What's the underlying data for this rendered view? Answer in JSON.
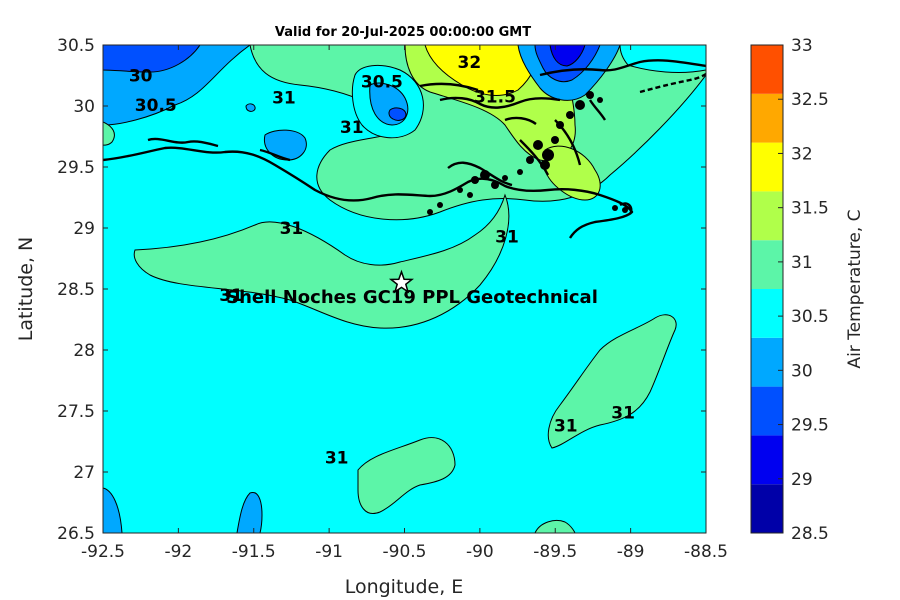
{
  "title": "Valid for 20-Jul-2025 00:00:00 GMT",
  "xlabel": "Longitude, E",
  "ylabel": "Latitude, N",
  "colorbar_label": "Air Temperature, C",
  "site_label": "Shell Noches   GC19 PPL  Geotechnical",
  "site_marker_icon": "star-icon",
  "chart_data": {
    "type": "heatmap",
    "title": "Valid for 20-Jul-2025 00:00:00 GMT",
    "xlabel": "Longitude, E",
    "ylabel": "Latitude, N",
    "xlim": [
      -92.5,
      -88.5
    ],
    "ylim": [
      26.5,
      30.5
    ],
    "xticks": [
      "-92.5",
      "-92",
      "-91.5",
      "-91",
      "-90.5",
      "-90",
      "-89.5",
      "-89",
      "-88.5"
    ],
    "yticks": [
      "26.5",
      "27",
      "27.5",
      "28",
      "28.5",
      "29",
      "29.5",
      "30",
      "30.5"
    ],
    "colorbar": {
      "label": "Air Temperature, C",
      "range": [
        28.5,
        33
      ],
      "ticks": [
        "28.5",
        "29",
        "29.5",
        "30",
        "30.5",
        "31",
        "31.5",
        "32",
        "32.5",
        "33"
      ],
      "colors": [
        "#0000a8",
        "#0000f0",
        "#0050ff",
        "#00a8ff",
        "#00ffff",
        "#5cf5a8",
        "#b0ff4a",
        "#ffff00",
        "#ffa800",
        "#ff5000"
      ]
    },
    "contour_labels": [
      {
        "text": "30",
        "lon": -92.25,
        "lat": 30.2
      },
      {
        "text": "30.5",
        "lon": -92.15,
        "lat": 29.96
      },
      {
        "text": "31",
        "lon": -91.3,
        "lat": 30.02
      },
      {
        "text": "30.5",
        "lon": -90.65,
        "lat": 30.15
      },
      {
        "text": "32",
        "lon": -90.07,
        "lat": 30.31
      },
      {
        "text": "31.5",
        "lon": -89.9,
        "lat": 30.03
      },
      {
        "text": "31",
        "lon": -90.85,
        "lat": 29.78
      },
      {
        "text": "31",
        "lon": -91.25,
        "lat": 28.95
      },
      {
        "text": "31",
        "lon": -89.82,
        "lat": 28.88
      },
      {
        "text": "31",
        "lon": -91.65,
        "lat": 28.4
      },
      {
        "text": "31",
        "lon": -90.95,
        "lat": 27.07
      },
      {
        "text": "31",
        "lon": -89.43,
        "lat": 27.33
      },
      {
        "text": "31",
        "lon": -89.05,
        "lat": 27.44
      }
    ],
    "site": {
      "name": "Shell Noches   GC19 PPL  Geotechnical",
      "lon": -90.52,
      "lat": 28.55
    }
  }
}
